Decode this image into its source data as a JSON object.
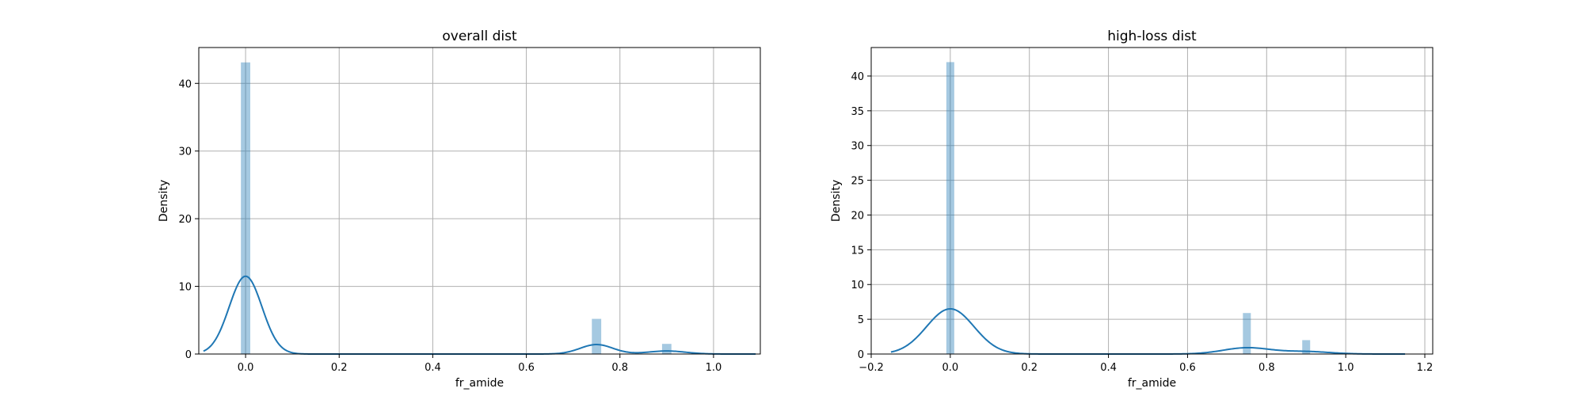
{
  "chart_data": [
    {
      "type": "bar",
      "title": "overall dist",
      "xlabel": "fr_amide",
      "ylabel": "Density",
      "xlim": [
        -0.1,
        1.1
      ],
      "ylim": [
        0,
        45.3
      ],
      "xticks": [
        0.0,
        0.2,
        0.4,
        0.6,
        0.8,
        1.0
      ],
      "xtick_labels": [
        "0.0",
        "0.2",
        "0.4",
        "0.6",
        "0.8",
        "1.0"
      ],
      "yticks": [
        0,
        10,
        20,
        30,
        40
      ],
      "ytick_labels": [
        "0",
        "10",
        "20",
        "30",
        "40"
      ],
      "grid": true,
      "bar_color": "#1f77b4",
      "line_color": "#1f77b4",
      "histogram": {
        "bin_width": 0.02,
        "bins": [
          {
            "x": 0.0,
            "density": 43.1
          },
          {
            "x": 0.75,
            "density": 5.2
          },
          {
            "x": 0.9,
            "density": 1.5
          }
        ]
      },
      "kde": {
        "x_range": [
          -0.09,
          1.09
        ],
        "components": [
          {
            "mean": 0.0,
            "sd": 0.035,
            "peak": 11.5
          },
          {
            "mean": 0.75,
            "sd": 0.035,
            "peak": 1.4
          },
          {
            "mean": 0.9,
            "sd": 0.04,
            "peak": 0.45
          }
        ]
      }
    },
    {
      "type": "bar",
      "title": "high-loss dist",
      "xlabel": "fr_amide",
      "ylabel": "Density",
      "xlim": [
        -0.2,
        1.22
      ],
      "ylim": [
        0,
        44.1
      ],
      "xticks": [
        -0.2,
        0.0,
        0.2,
        0.4,
        0.6,
        0.8,
        1.0,
        1.2
      ],
      "xtick_labels": [
        "−0.2",
        "0.0",
        "0.2",
        "0.4",
        "0.6",
        "0.8",
        "1.0",
        "1.2"
      ],
      "yticks": [
        0,
        5,
        10,
        15,
        20,
        25,
        30,
        35,
        40
      ],
      "ytick_labels": [
        "0",
        "5",
        "10",
        "15",
        "20",
        "25",
        "30",
        "35",
        "40"
      ],
      "grid": true,
      "bar_color": "#1f77b4",
      "line_color": "#1f77b4",
      "histogram": {
        "bin_width": 0.02,
        "bins": [
          {
            "x": 0.0,
            "density": 42.0
          },
          {
            "x": 0.75,
            "density": 5.9
          },
          {
            "x": 0.9,
            "density": 2.0
          }
        ]
      },
      "kde": {
        "x_range": [
          -0.15,
          1.15
        ],
        "components": [
          {
            "mean": 0.0,
            "sd": 0.06,
            "peak": 6.5
          },
          {
            "mean": 0.75,
            "sd": 0.06,
            "peak": 0.9
          },
          {
            "mean": 0.9,
            "sd": 0.06,
            "peak": 0.35
          }
        ]
      }
    }
  ]
}
